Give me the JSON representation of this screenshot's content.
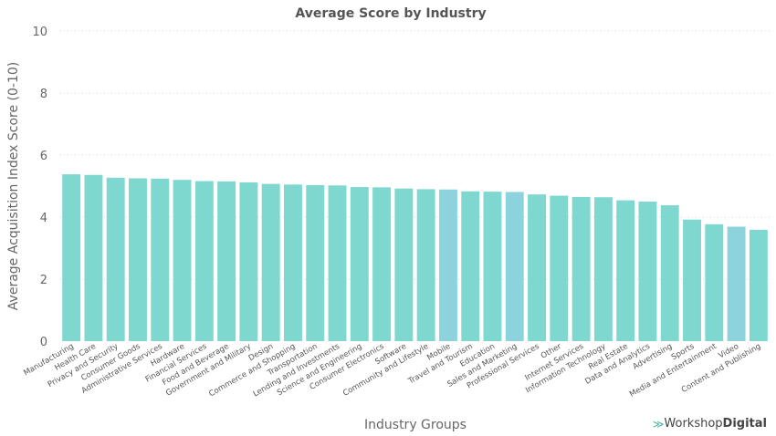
{
  "colors": {
    "bar": "#7fd8cf",
    "bar_alt": "#8dd3dd",
    "grid": "#d0d0d0",
    "text": "#666666",
    "brand_accent": "#3bb39a"
  },
  "brand": {
    "part1": "Workshop",
    "part2": "Digital",
    "icon": "double-chevron-logo-icon"
  },
  "chart_data": {
    "type": "bar",
    "title": "Average Score by Industry",
    "xlabel": "Industry Groups",
    "ylabel": "Average Acquisition Index Score (0-10)",
    "ylim": [
      0,
      10
    ],
    "yticks": [
      0,
      2,
      4,
      6,
      8,
      10
    ],
    "grid": true,
    "categories": [
      "Manufacturing",
      "Health Care",
      "Privacy and Security",
      "Consumer Goods",
      "Administrative Services",
      "Hardware",
      "Financial Services",
      "Food and Beverage",
      "Government and Military",
      "Design",
      "Commerce and Shopping",
      "Transportation",
      "Lending and Investments",
      "Science and Engineering",
      "Consumer Electronics",
      "Software",
      "Community and Lifestyle",
      "Mobile",
      "Travel and Tourism",
      "Education",
      "Sales and Marketing",
      "Professional Services",
      "Other",
      "Internet Services",
      "Information Technology",
      "Real Estate",
      "Data and Analytics",
      "Advertising",
      "Sports",
      "Media and Entertainment",
      "Video",
      "Content and Publishing"
    ],
    "values": [
      5.38,
      5.36,
      5.27,
      5.25,
      5.24,
      5.2,
      5.16,
      5.15,
      5.12,
      5.07,
      5.05,
      5.03,
      5.02,
      4.97,
      4.96,
      4.92,
      4.9,
      4.89,
      4.83,
      4.82,
      4.81,
      4.73,
      4.69,
      4.65,
      4.64,
      4.54,
      4.5,
      4.38,
      3.92,
      3.77,
      3.69,
      3.59
    ],
    "highlighted": [
      "Mobile",
      "Sales and Marketing",
      "Video"
    ]
  }
}
